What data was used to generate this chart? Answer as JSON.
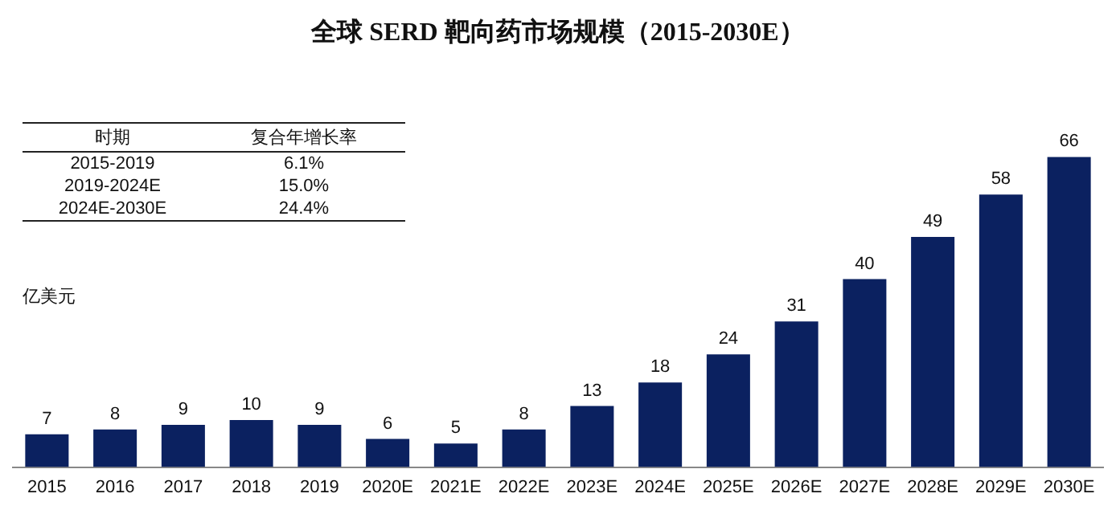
{
  "chart_data": {
    "type": "bar",
    "title": "全球 SERD 靶向药市场规模（2015-2030E）",
    "ylabel": "亿美元",
    "categories": [
      "2015",
      "2016",
      "2017",
      "2018",
      "2019",
      "2020E",
      "2021E",
      "2022E",
      "2023E",
      "2024E",
      "2025E",
      "2026E",
      "2027E",
      "2028E",
      "2029E",
      "2030E"
    ],
    "values": [
      7,
      8,
      9,
      10,
      9,
      6,
      5,
      8,
      13,
      18,
      24,
      31,
      40,
      49,
      58,
      66
    ],
    "color": "#0b2160",
    "data_labels": true,
    "grid": false,
    "legend": false,
    "annotations": [
      "时期",
      "复合年增长率",
      "2015-2019",
      "6.1%",
      "2019-2024E",
      "15.0%",
      "2024E-2030E",
      "24.4%"
    ]
  }
}
